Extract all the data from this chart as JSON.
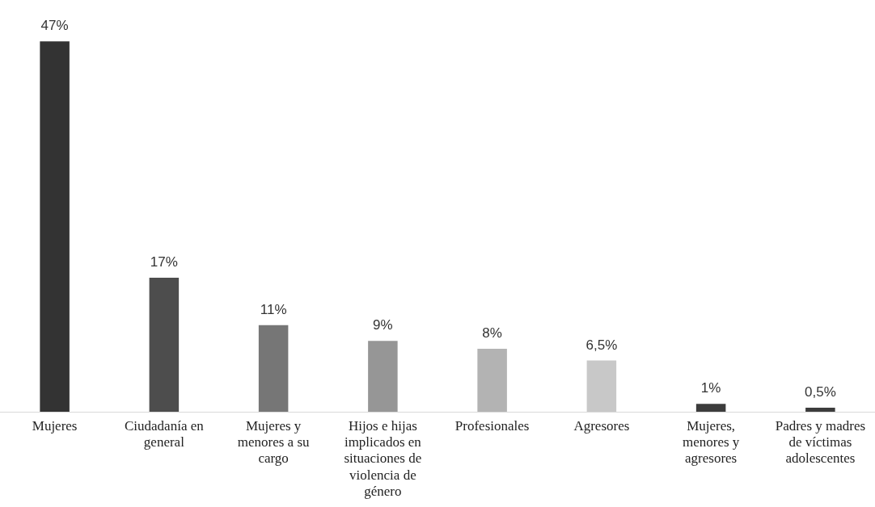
{
  "chart_data": {
    "type": "bar",
    "categories": [
      "Mujeres",
      "Ciudadanía en general",
      "Mujeres y menores a su cargo",
      "Hijos e hijas implicados en situaciones de violencia de género",
      "Profesionales",
      "Agresores",
      "Mujeres, menores y agresores",
      "Padres y madres de víctimas adolescentes"
    ],
    "values": [
      47,
      17,
      11,
      9,
      8,
      6.5,
      1,
      0.5
    ],
    "colors": [
      "#333333",
      "#4d4d4d",
      "#767676",
      "#969696",
      "#b3b3b3",
      "#c8c8c8",
      "#3c3c3c",
      "#3c3c3c"
    ],
    "value_labels": [
      "47%",
      "17%",
      "11%",
      "9%",
      "8%",
      "6,5%",
      "1%",
      "0,5%"
    ],
    "grid": false,
    "legend": false
  }
}
